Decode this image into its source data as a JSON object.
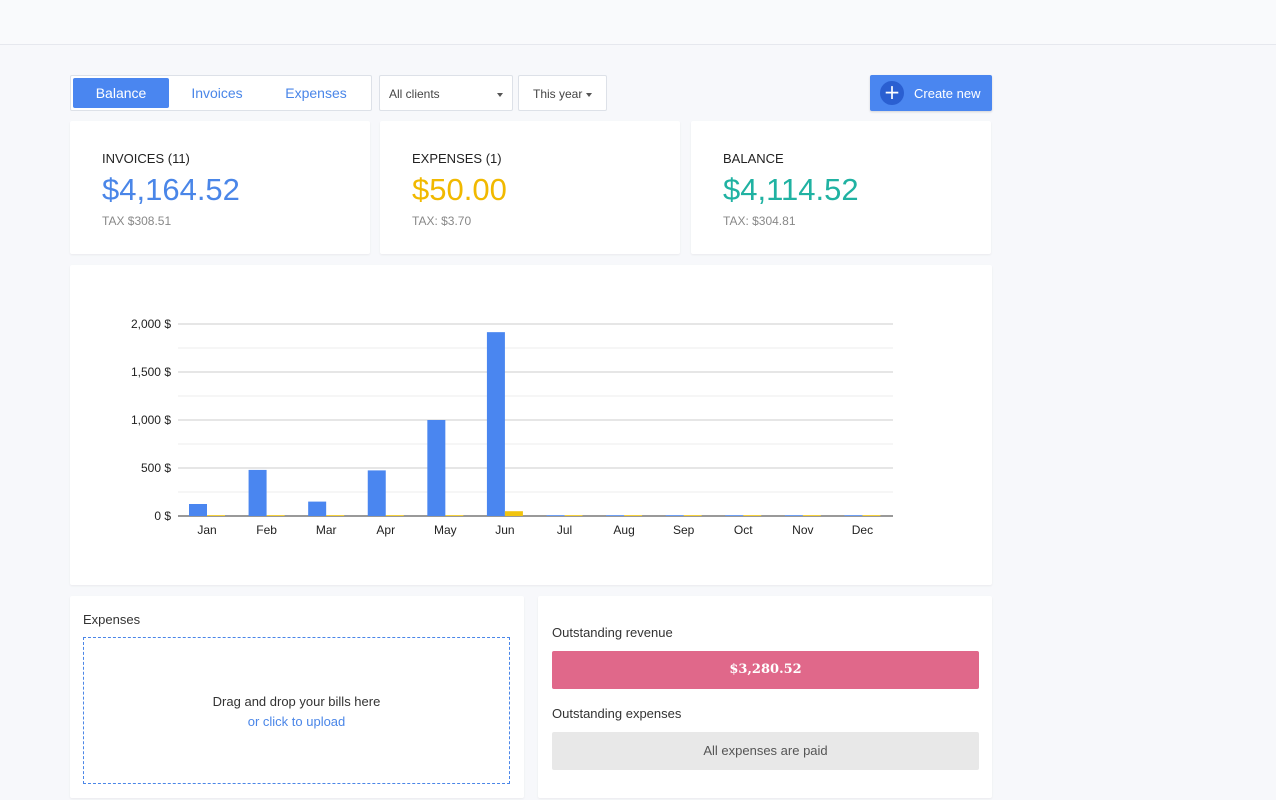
{
  "tabs": [
    {
      "label": "Balance",
      "active": true
    },
    {
      "label": "Invoices",
      "active": false
    },
    {
      "label": "Expenses",
      "active": false
    }
  ],
  "filters": {
    "client": "All clients",
    "period": "This year"
  },
  "create_button": {
    "label": "Create new",
    "icon": "plus-icon"
  },
  "stats": {
    "invoices": {
      "label": "INVOICES (11)",
      "amount": "$4,164.52",
      "tax": "TAX $308.51",
      "color": "#4a86e8"
    },
    "expenses": {
      "label": "EXPENSES (1)",
      "amount": "$50.00",
      "tax": "TAX: $3.70",
      "color": "#f1b900"
    },
    "balance": {
      "label": "BALANCE",
      "amount": "$4,114.52",
      "tax": "TAX: $304.81",
      "color": "#20b2a2"
    }
  },
  "chart_data": {
    "type": "bar",
    "categories": [
      "Jan",
      "Feb",
      "Mar",
      "Apr",
      "May",
      "Jun",
      "Jul",
      "Aug",
      "Sep",
      "Oct",
      "Nov",
      "Dec"
    ],
    "series": [
      {
        "values": [
          125,
          480,
          150,
          475,
          1000,
          1915,
          0,
          0,
          0,
          0,
          0,
          0
        ],
        "color": "#4a86f0"
      },
      {
        "values": [
          0,
          0,
          0,
          0,
          0,
          50,
          0,
          0,
          0,
          0,
          0,
          0
        ],
        "color": "#f1c40f"
      }
    ],
    "ylim": [
      0,
      2000
    ],
    "yticks": [
      0,
      500,
      1000,
      1500,
      2000
    ],
    "ytick_labels": [
      "0 $",
      "500 $",
      "1,000 $",
      "1,500 $",
      "2,000 $"
    ],
    "grid": true
  },
  "expenses_panel": {
    "title": "Expenses",
    "drop_text": "Drag and drop your bills here",
    "upload_link": "or click to upload"
  },
  "outstanding": {
    "revenue_title": "Outstanding revenue",
    "revenue_amount": "$3,280.52",
    "expenses_title": "Outstanding expenses",
    "expenses_status": "All expenses are paid"
  }
}
